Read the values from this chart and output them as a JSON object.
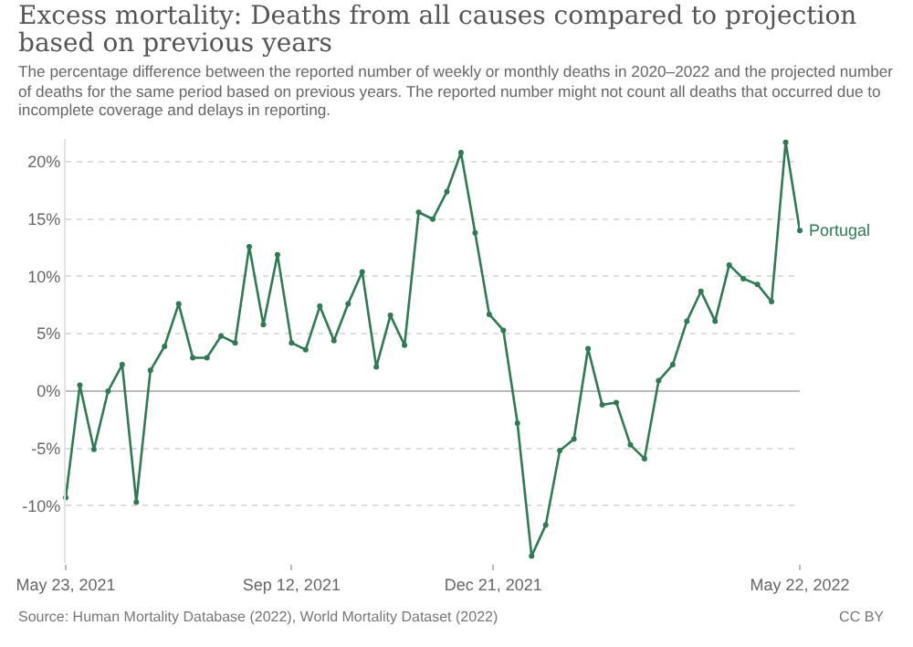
{
  "chart_data": {
    "type": "line",
    "title": "Excess mortality: Deaths from all causes compared to projection based on previous years",
    "subtitle": "The percentage difference between the reported number of weekly or monthly deaths in 2020–2022 and the projected number of deaths for the same period based on previous years. The reported number might not count all deaths that occurred due to incomplete coverage and delays in reporting.",
    "x": [
      "2021-05-23",
      "2021-05-30",
      "2021-06-06",
      "2021-06-13",
      "2021-06-20",
      "2021-06-27",
      "2021-07-04",
      "2021-07-11",
      "2021-07-18",
      "2021-07-25",
      "2021-08-01",
      "2021-08-08",
      "2021-08-15",
      "2021-08-22",
      "2021-08-29",
      "2021-09-05",
      "2021-09-12",
      "2021-09-19",
      "2021-09-26",
      "2021-10-03",
      "2021-10-10",
      "2021-10-17",
      "2021-10-24",
      "2021-10-31",
      "2021-11-07",
      "2021-11-14",
      "2021-11-21",
      "2021-11-28",
      "2021-12-05",
      "2021-12-12",
      "2021-12-19",
      "2021-12-26",
      "2022-01-02",
      "2022-01-09",
      "2022-01-16",
      "2022-01-23",
      "2022-01-30",
      "2022-02-06",
      "2022-02-13",
      "2022-02-20",
      "2022-02-27",
      "2022-03-06",
      "2022-03-13",
      "2022-03-20",
      "2022-03-27",
      "2022-04-03",
      "2022-04-10",
      "2022-04-17",
      "2022-04-24",
      "2022-05-01",
      "2022-05-08",
      "2022-05-15",
      "2022-05-22"
    ],
    "series": [
      {
        "name": "Portugal",
        "color": "#2f7a55",
        "values": [
          -9.3,
          0.5,
          -5.1,
          0,
          2.3,
          -9.7,
          1.8,
          3.9,
          7.6,
          2.9,
          2.9,
          4.8,
          4.2,
          12.6,
          5.8,
          11.9,
          4.2,
          3.6,
          7.4,
          4.4,
          7.6,
          10.4,
          2.1,
          6.6,
          4.0,
          15.6,
          15.0,
          17.4,
          20.8,
          13.8,
          6.7,
          5.3,
          -2.8,
          -14.4,
          -11.7,
          -5.2,
          -4.2,
          3.7,
          -1.2,
          -1.0,
          -4.7,
          -5.9,
          0.9,
          2.3,
          6.1,
          8.7,
          6.1,
          11.0,
          9.8,
          9.3,
          7.8,
          21.7,
          14.0
        ]
      }
    ],
    "xlim": [
      "2021-05-23",
      "2022-05-22"
    ],
    "xticks": [
      {
        "value": "2021-05-23",
        "label": "May 23, 2021"
      },
      {
        "value": "2021-09-12",
        "label": "Sep 12, 2021"
      },
      {
        "value": "2021-12-21",
        "label": "Dec 21, 2021"
      },
      {
        "value": "2022-05-22",
        "label": "May 22, 2022"
      }
    ],
    "ylim": [
      -15,
      22
    ],
    "yticks": [
      {
        "value": -10,
        "label": "-10%"
      },
      {
        "value": -5,
        "label": "-5%"
      },
      {
        "value": 0,
        "label": "0%"
      },
      {
        "value": 5,
        "label": "5%"
      },
      {
        "value": 10,
        "label": "10%"
      },
      {
        "value": 15,
        "label": "15%"
      },
      {
        "value": 20,
        "label": "20%"
      }
    ],
    "grid": "y",
    "marker": "circle",
    "line_style": "solid",
    "legend": false,
    "annotations": [
      "Source: Human Mortality Database (2022), World Mortality Dataset (2022)",
      "CC BY"
    ]
  }
}
